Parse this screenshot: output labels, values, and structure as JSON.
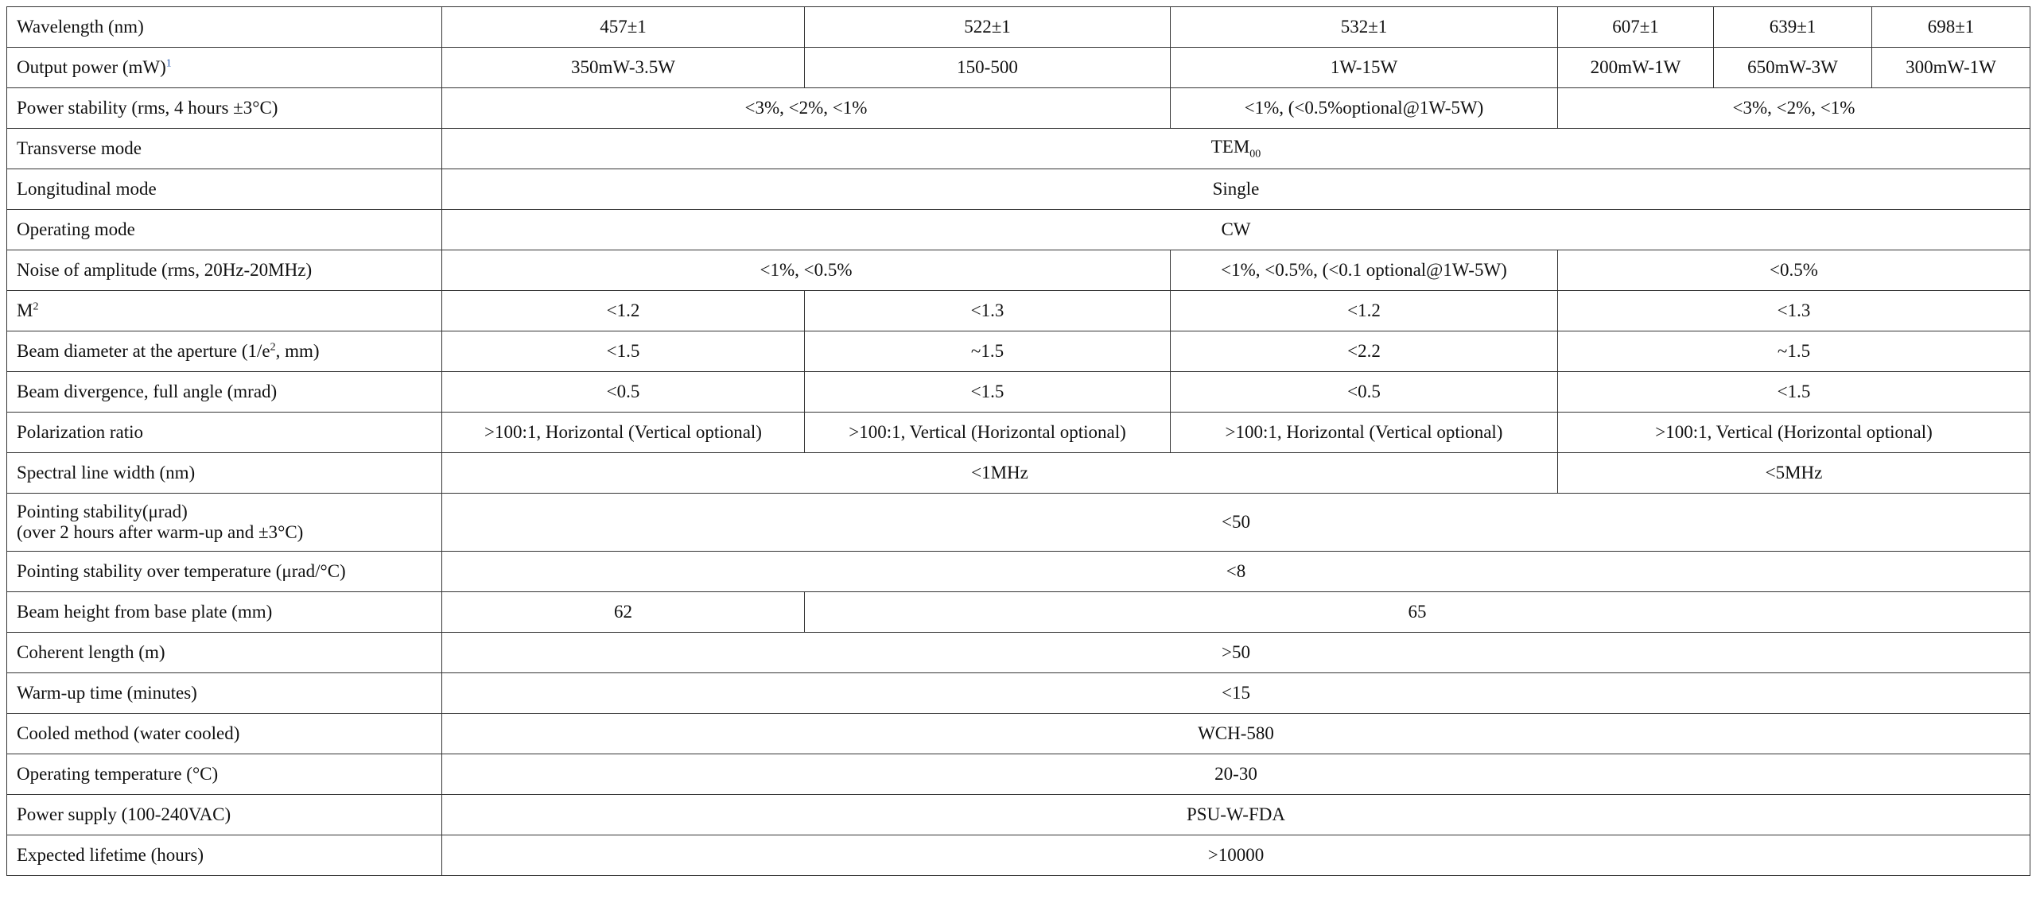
{
  "table": {
    "rows": [
      [
        "Wavelength (nm)",
        "457±1",
        "522±1",
        "532±1",
        "607±1",
        "639±1",
        "698±1"
      ],
      [
        [
          "Output power (mW)",
          "1"
        ],
        "350mW-3.5W",
        "150-500",
        "1W-15W",
        "200mW-1W",
        "650mW-3W",
        "300mW-1W"
      ],
      [
        "Power stability (rms, 4 hours ±3°C)",
        "<3%, <2%, <1%",
        "<1%, (<0.5%optional@1W-5W)",
        "<3%, <2%, <1%"
      ],
      [
        "Transverse mode",
        [
          "TEM",
          "00"
        ]
      ],
      [
        "Longitudinal mode",
        "Single"
      ],
      [
        "Operating mode",
        "CW"
      ],
      [
        "Noise of amplitude (rms, 20Hz-20MHz)",
        "<1%, <0.5%",
        "<1%, <0.5%, (<0.1 optional@1W-5W)",
        "<0.5%"
      ],
      [
        [
          "M",
          "2"
        ],
        "<1.2",
        "<1.3",
        "<1.2",
        "<1.3"
      ],
      [
        [
          "Beam diameter at the aperture (1/e",
          "2",
          ", mm)"
        ],
        "<1.5",
        "~1.5",
        "<2.2",
        "~1.5"
      ],
      [
        "Beam divergence, full angle (mrad)",
        "<0.5",
        "<1.5",
        "<0.5",
        "<1.5"
      ],
      [
        "Polarization ratio",
        ">100:1, Horizontal (Vertical optional)",
        ">100:1, Vertical (Horizontal optional)",
        ">100:1, Horizontal (Vertical optional)",
        ">100:1, Vertical (Horizontal optional)"
      ],
      [
        "Spectral line width (nm)",
        "<1MHz",
        "<5MHz"
      ],
      [
        [
          "Pointing stability(μrad)",
          "(over 2 hours after warm-up and ±3°C)"
        ],
        "<50"
      ],
      [
        "Pointing stability over temperature (μrad/°C)",
        "<8"
      ],
      [
        "Beam height from base plate (mm)",
        "62",
        "65"
      ],
      [
        "Coherent length (m)",
        ">50"
      ],
      [
        "Warm-up time (minutes)",
        "<15"
      ],
      [
        "Cooled method (water cooled)",
        "WCH-580"
      ],
      [
        "Operating temperature (°C)",
        "20-30"
      ],
      [
        "Power supply (100-240VAC)",
        "PSU-W-FDA"
      ],
      [
        "Expected lifetime (hours)",
        ">10000"
      ]
    ]
  }
}
